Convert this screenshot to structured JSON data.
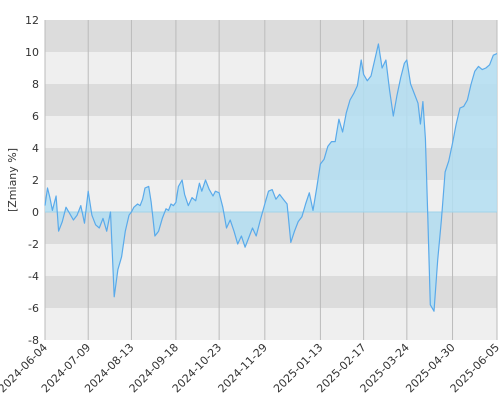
{
  "chart_data": {
    "type": "area",
    "title": "",
    "xlabel": "",
    "ylabel": "[Zmiany %]",
    "ylim": [
      -8,
      12
    ],
    "yticks": [
      -8,
      -6,
      -4,
      -2,
      0,
      2,
      4,
      6,
      8,
      10,
      12
    ],
    "xlim": [
      "2024-06-04",
      "2025-06-05"
    ],
    "xticks": [
      "2024-06-04",
      "2024-07-09",
      "2024-08-13",
      "2024-09-18",
      "2024-10-23",
      "2024-11-29",
      "2025-01-13",
      "2025-02-17",
      "2025-03-24",
      "2025-04-30",
      "2025-06-05"
    ],
    "grid": true,
    "legend": "none",
    "colors": {
      "line": "#5aaaea",
      "fill": "#b3def2",
      "band_dark": "#dcdcdc",
      "band_light": "#efefef",
      "zero_line": "#9fd3ea",
      "vertical_grid": "#bbbbbb"
    },
    "series": [
      {
        "x": [
          "2024-06-04",
          "2024-06-06",
          "2024-06-08",
          "2024-06-10",
          "2024-06-13",
          "2024-06-15",
          "2024-06-18",
          "2024-06-21",
          "2024-06-24",
          "2024-06-27",
          "2024-06-30",
          "2024-07-03",
          "2024-07-06",
          "2024-07-09",
          "2024-07-12",
          "2024-07-15",
          "2024-07-18",
          "2024-07-21",
          "2024-07-24",
          "2024-07-27",
          "2024-07-30",
          "2024-08-02",
          "2024-08-05",
          "2024-08-08",
          "2024-08-11",
          "2024-08-13",
          "2024-08-15",
          "2024-08-18",
          "2024-08-20",
          "2024-08-22",
          "2024-08-24",
          "2024-08-27",
          "2024-08-29",
          "2024-09-01",
          "2024-09-04",
          "2024-09-07",
          "2024-09-10",
          "2024-09-12",
          "2024-09-14",
          "2024-09-16",
          "2024-09-18",
          "2024-09-20",
          "2024-09-23",
          "2024-09-25",
          "2024-09-28",
          "2024-10-01",
          "2024-10-04",
          "2024-10-07",
          "2024-10-09",
          "2024-10-12",
          "2024-10-15",
          "2024-10-18",
          "2024-10-20",
          "2024-10-23",
          "2024-10-26",
          "2024-10-29",
          "2024-11-01",
          "2024-11-04",
          "2024-11-07",
          "2024-11-10",
          "2024-11-13",
          "2024-11-16",
          "2024-11-19",
          "2024-11-22",
          "2024-11-25",
          "2024-11-29",
          "2024-12-02",
          "2024-12-05",
          "2024-12-08",
          "2024-12-11",
          "2024-12-14",
          "2024-12-17",
          "2024-12-20",
          "2024-12-23",
          "2024-12-26",
          "2024-12-29",
          "2025-01-01",
          "2025-01-04",
          "2025-01-07",
          "2025-01-10",
          "2025-01-13",
          "2025-01-16",
          "2025-01-19",
          "2025-01-22",
          "2025-01-25",
          "2025-01-28",
          "2025-01-31",
          "2025-02-03",
          "2025-02-06",
          "2025-02-09",
          "2025-02-12",
          "2025-02-15",
          "2025-02-17",
          "2025-02-20",
          "2025-02-23",
          "2025-02-26",
          "2025-03-01",
          "2025-03-04",
          "2025-03-07",
          "2025-03-10",
          "2025-03-13",
          "2025-03-16",
          "2025-03-19",
          "2025-03-22",
          "2025-03-24",
          "2025-03-27",
          "2025-03-30",
          "2025-04-02",
          "2025-04-04",
          "2025-04-06",
          "2025-04-08",
          "2025-04-10",
          "2025-04-12",
          "2025-04-15",
          "2025-04-18",
          "2025-04-21",
          "2025-04-24",
          "2025-04-27",
          "2025-04-30",
          "2025-05-03",
          "2025-05-06",
          "2025-05-09",
          "2025-05-12",
          "2025-05-15",
          "2025-05-18",
          "2025-05-21",
          "2025-05-24",
          "2025-05-27",
          "2025-05-30",
          "2025-06-02",
          "2025-06-05"
        ],
        "y": [
          0.4,
          1.5,
          0.9,
          0.1,
          1.0,
          -1.2,
          -0.6,
          0.3,
          -0.1,
          -0.5,
          -0.2,
          0.4,
          -0.7,
          1.3,
          -0.2,
          -0.8,
          -1.0,
          -0.4,
          -1.2,
          0.0,
          -5.3,
          -3.6,
          -2.8,
          -1.2,
          -0.2,
          0.0,
          0.3,
          0.5,
          0.4,
          0.8,
          1.5,
          1.6,
          0.6,
          -1.5,
          -1.2,
          -0.4,
          0.2,
          0.1,
          0.5,
          0.4,
          0.6,
          1.6,
          2.0,
          1.1,
          0.4,
          0.9,
          0.7,
          1.8,
          1.3,
          2.0,
          1.4,
          1.0,
          1.3,
          1.2,
          0.3,
          -1.0,
          -0.5,
          -1.2,
          -2.0,
          -1.5,
          -2.2,
          -1.6,
          -1.0,
          -1.5,
          -0.6,
          0.5,
          1.3,
          1.4,
          0.8,
          1.1,
          0.8,
          0.5,
          -1.9,
          -1.2,
          -0.6,
          -0.3,
          0.5,
          1.2,
          0.1,
          1.5,
          3.0,
          3.3,
          4.1,
          4.4,
          4.4,
          5.8,
          5.0,
          6.2,
          7.0,
          7.4,
          7.9,
          9.5,
          8.6,
          8.2,
          8.5,
          9.5,
          10.5,
          9.0,
          9.5,
          7.6,
          6.0,
          7.3,
          8.4,
          9.3,
          9.5,
          8.0,
          7.4,
          6.8,
          5.5,
          6.9,
          4.6,
          -0.3,
          -5.8,
          -6.2,
          -3.0,
          -0.5,
          2.5,
          3.2,
          4.3,
          5.5,
          6.5,
          6.6,
          7.0,
          8.0,
          8.8,
          9.1,
          8.9,
          9.0,
          9.2,
          9.8,
          9.9
        ]
      }
    ]
  }
}
